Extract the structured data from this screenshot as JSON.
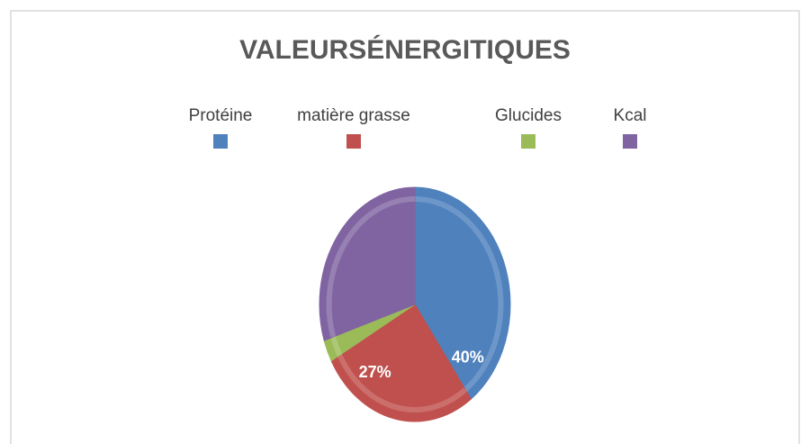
{
  "chart_data": {
    "type": "pie",
    "title": "VALEURSÉNERGITIQUES",
    "categories": [
      "Protéine",
      "matière grasse",
      "Glucides",
      "Kcal"
    ],
    "values": [
      40,
      27,
      3,
      30
    ],
    "value_labels": [
      "40%",
      "27%",
      null,
      null
    ],
    "colors": [
      "#4f81bd",
      "#c0504d",
      "#9bbb59",
      "#8064a2"
    ],
    "legend": "top"
  }
}
